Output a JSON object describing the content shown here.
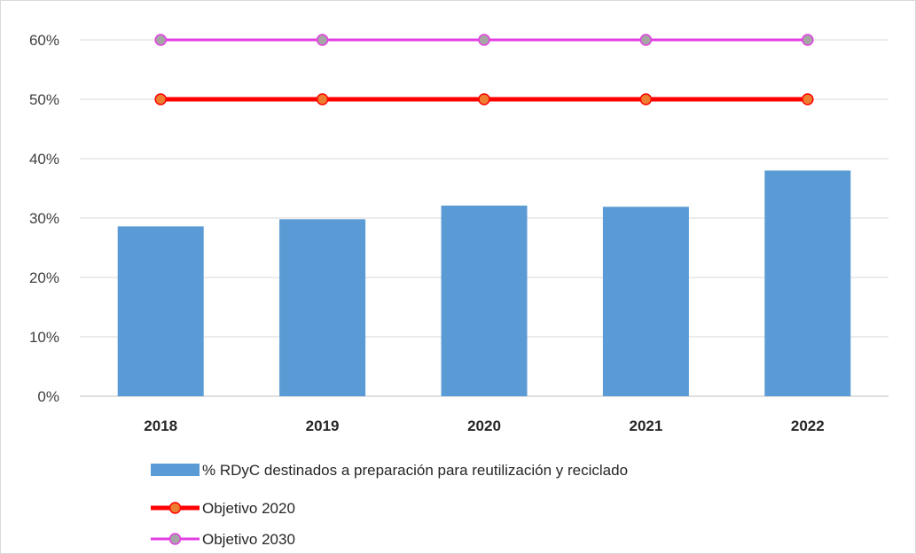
{
  "chart_data": {
    "type": "bar",
    "title": "",
    "xlabel": "",
    "ylabel": "",
    "categories": [
      "2018",
      "2019",
      "2020",
      "2021",
      "2022"
    ],
    "ylim": [
      0,
      0.6
    ],
    "yticks": [
      0,
      0.1,
      0.2,
      0.3,
      0.4,
      0.5,
      0.6
    ],
    "ytick_labels": [
      "0%",
      "10%",
      "20%",
      "30%",
      "40%",
      "50%",
      "60%"
    ],
    "grid": true,
    "legend_position": "bottom",
    "series": [
      {
        "name": "% RDyC destinados a preparación para reutilización y reciclado",
        "type": "bar",
        "color": "#5b9bd5",
        "values": [
          0.286,
          0.298,
          0.321,
          0.319,
          0.38
        ]
      },
      {
        "name": "Objetivo 2020",
        "type": "line",
        "color": "#ff0000",
        "marker_fill": "#ed7d31",
        "values": [
          0.5,
          0.5,
          0.5,
          0.5,
          0.5
        ]
      },
      {
        "name": "Objetivo 2030",
        "type": "line",
        "color": "#e33ee3",
        "marker_fill": "#a5a5a5",
        "values": [
          0.6,
          0.6,
          0.6,
          0.6,
          0.6
        ]
      }
    ]
  }
}
